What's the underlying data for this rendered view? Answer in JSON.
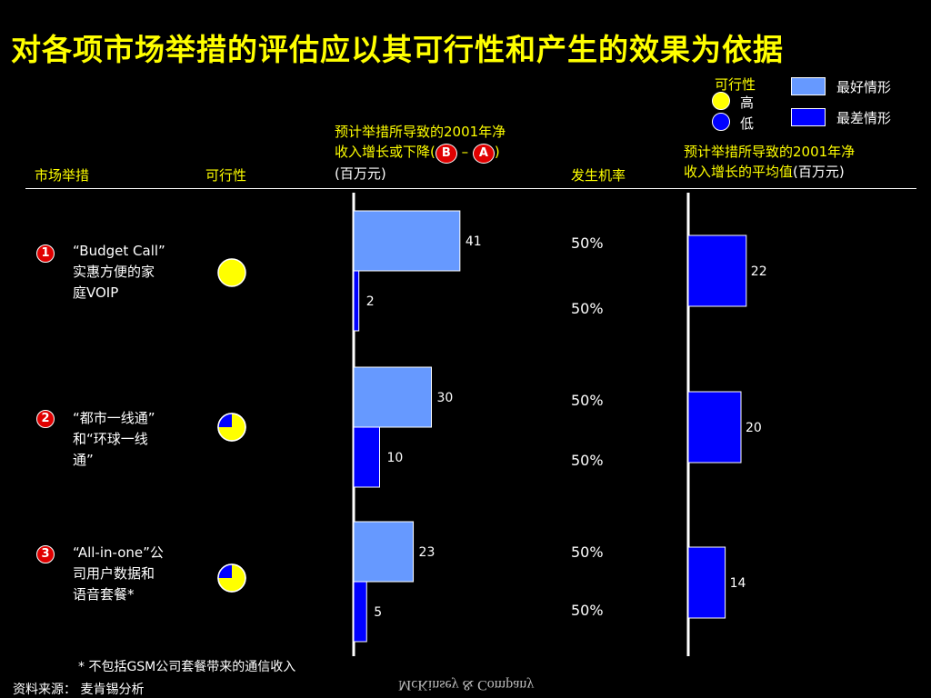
{
  "title": "对各项市场举措的评估应以其可行性和产生的效果为依据",
  "legend": {
    "feasibility_label": "可行性",
    "high": "高",
    "low": "低",
    "best": "最好情形",
    "worst": "最差情形",
    "colors": {
      "best": "#6699ff",
      "worst": "#0000ff",
      "high": "#ffff00",
      "low": "#0000ff"
    }
  },
  "headers": {
    "initiative": "市场举措",
    "feasibility": "可行性",
    "impact_line1": "预计举措所导致的2001年净",
    "impact_line2_pre": "收入增长或下降(",
    "impact_b": "B",
    "impact_dash": "–",
    "impact_a": "A",
    "impact_line2_post": ")",
    "impact_unit": "(百万元)",
    "probability": "发生机率",
    "avg_line1": "预计举措所导致的2001年净",
    "avg_line2": "收入增长的平均值",
    "avg_unit": "(百万元)"
  },
  "initiatives": [
    {
      "num": "1",
      "name_l1": "“Budget Call”",
      "name_l2": "实惠方便的家",
      "name_l3": "庭VOIP",
      "feasibility": "high",
      "best": 41,
      "worst": 2,
      "p_best": "50%",
      "p_worst": "50%",
      "avg": 22
    },
    {
      "num": "2",
      "name_l1": "“都市一线通”",
      "name_l2": "和“环球一线",
      "name_l3": "通”",
      "feasibility": "medium",
      "best": 30,
      "worst": 10,
      "p_best": "50%",
      "p_worst": "50%",
      "avg": 20
    },
    {
      "num": "3",
      "name_l1": "“All-in-one”公",
      "name_l2": "司用户数据和",
      "name_l3": "语音套餐*",
      "feasibility": "medium",
      "best": 23,
      "worst": 5,
      "p_best": "50%",
      "p_worst": "50%",
      "avg": 14
    }
  ],
  "chart_data": [
    {
      "type": "bar",
      "categories": [
        "“Budget Call”实惠方便的家庭VOIP",
        "“都市一线通”和“环球一线通”",
        "“All-in-one”公司用户数据和语音套餐*"
      ],
      "series": [
        {
          "name": "最好情形",
          "values": [
            41,
            30,
            23
          ]
        },
        {
          "name": "最差情形",
          "values": [
            2,
            10,
            5
          ]
        }
      ],
      "probabilities": [
        [
          "50%",
          "50%"
        ],
        [
          "50%",
          "50%"
        ],
        [
          "50%",
          "50%"
        ]
      ],
      "title": "预计举措所导致的2001年净收入增长或下降(B – A)(百万元)",
      "xlabel": "",
      "ylabel": ""
    },
    {
      "type": "bar",
      "categories": [
        "“Budget Call”实惠方便的家庭VOIP",
        "“都市一线通”和“环球一线通”",
        "“All-in-one”公司用户数据和语音套餐*"
      ],
      "values": [
        22,
        20,
        14
      ],
      "title": "预计举措所导致的2001年净收入增长的平均值(百万元)",
      "xlabel": "",
      "ylabel": ""
    }
  ],
  "footnote": "*   不包括GSM公司套餐带来的通信收入",
  "source": "资料来源：  麦肯锡分析",
  "watermark": "McKinsey & Company"
}
